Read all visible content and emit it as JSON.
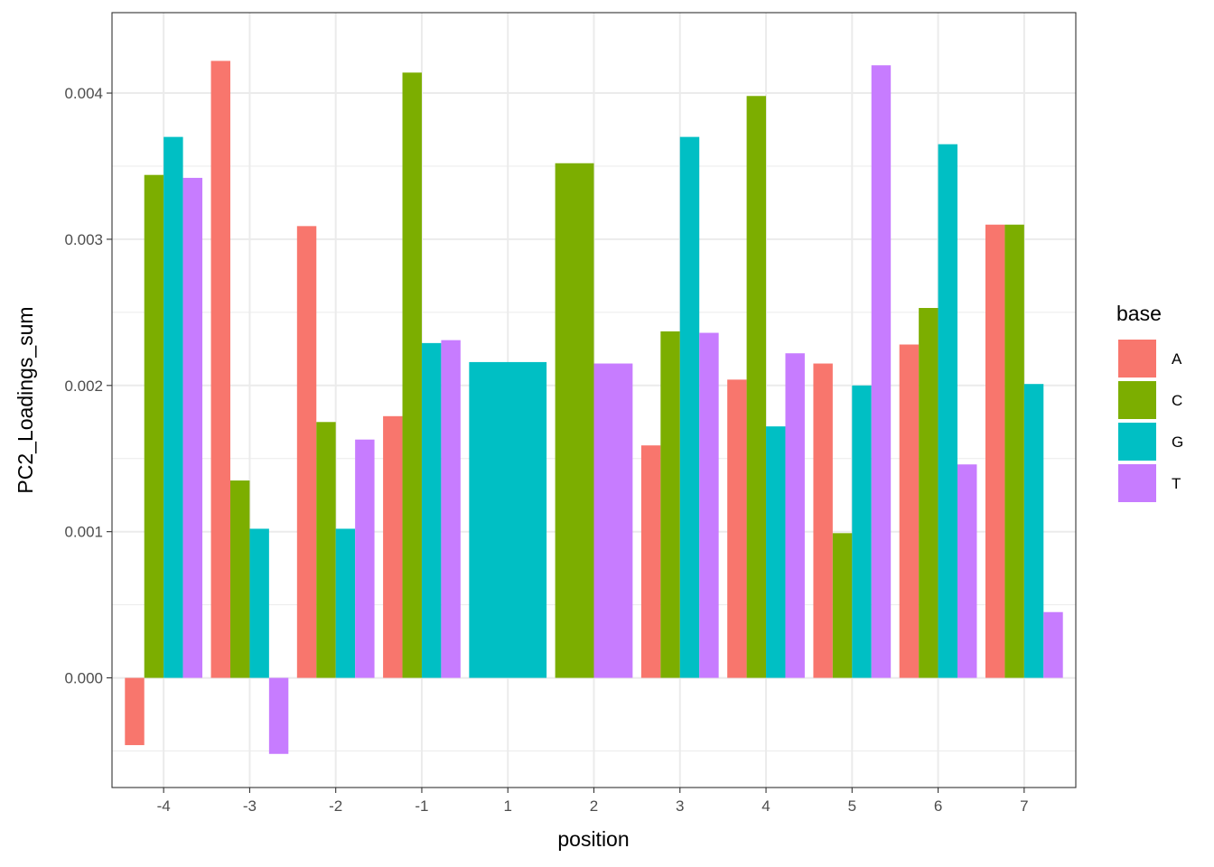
{
  "chart_data": {
    "type": "bar",
    "xlabel": "position",
    "ylabel": "PC2_Loadings_sum",
    "ylim": [
      -0.00075,
      0.00455
    ],
    "y_ticks": [
      0.0,
      0.001,
      0.002,
      0.003,
      0.004
    ],
    "y_tick_labels": [
      "0.000",
      "0.001",
      "0.002",
      "0.003",
      "0.004"
    ],
    "grid": true,
    "legend": {
      "title": "base",
      "placement": "right"
    },
    "series_colors": {
      "A": "#F8766D",
      "C": "#7CAE00",
      "G": "#00BFC4",
      "T": "#C77CFF"
    },
    "categories": [
      "-4",
      "-3",
      "-2",
      "-1",
      "1",
      "2",
      "3",
      "4",
      "5",
      "6",
      "7"
    ],
    "groups": [
      {
        "position": "-4",
        "bars": [
          {
            "base": "A",
            "value": -0.00046
          },
          {
            "base": "C",
            "value": 0.00344
          },
          {
            "base": "G",
            "value": 0.0037
          },
          {
            "base": "T",
            "value": 0.00342
          }
        ]
      },
      {
        "position": "-3",
        "bars": [
          {
            "base": "A",
            "value": 0.00422
          },
          {
            "base": "C",
            "value": 0.00135
          },
          {
            "base": "G",
            "value": 0.00102
          },
          {
            "base": "T",
            "value": -0.00052
          }
        ]
      },
      {
        "position": "-2",
        "bars": [
          {
            "base": "A",
            "value": 0.00309
          },
          {
            "base": "C",
            "value": 0.00175
          },
          {
            "base": "G",
            "value": 0.00102
          },
          {
            "base": "T",
            "value": 0.00163
          }
        ]
      },
      {
        "position": "-1",
        "bars": [
          {
            "base": "A",
            "value": 0.00179
          },
          {
            "base": "C",
            "value": 0.00414
          },
          {
            "base": "G",
            "value": 0.00229
          },
          {
            "base": "T",
            "value": 0.00231
          }
        ]
      },
      {
        "position": "1",
        "bars": [
          {
            "base": "G",
            "value": 0.00216
          }
        ]
      },
      {
        "position": "2",
        "bars": [
          {
            "base": "C",
            "value": 0.00352
          },
          {
            "base": "T",
            "value": 0.00215
          }
        ]
      },
      {
        "position": "3",
        "bars": [
          {
            "base": "A",
            "value": 0.00159
          },
          {
            "base": "C",
            "value": 0.00237
          },
          {
            "base": "G",
            "value": 0.0037
          },
          {
            "base": "T",
            "value": 0.00236
          }
        ]
      },
      {
        "position": "4",
        "bars": [
          {
            "base": "A",
            "value": 0.00204
          },
          {
            "base": "C",
            "value": 0.00398
          },
          {
            "base": "G",
            "value": 0.00172
          },
          {
            "base": "T",
            "value": 0.00222
          }
        ]
      },
      {
        "position": "5",
        "bars": [
          {
            "base": "A",
            "value": 0.00215
          },
          {
            "base": "C",
            "value": 0.00099
          },
          {
            "base": "G",
            "value": 0.002
          },
          {
            "base": "T",
            "value": 0.00419
          }
        ]
      },
      {
        "position": "6",
        "bars": [
          {
            "base": "A",
            "value": 0.00228
          },
          {
            "base": "C",
            "value": 0.00253
          },
          {
            "base": "G",
            "value": 0.00365
          },
          {
            "base": "T",
            "value": 0.00146
          }
        ]
      },
      {
        "position": "7",
        "bars": [
          {
            "base": "A",
            "value": 0.0031
          },
          {
            "base": "C",
            "value": 0.0031
          },
          {
            "base": "G",
            "value": 0.00201
          },
          {
            "base": "T",
            "value": 0.00045
          }
        ]
      }
    ]
  }
}
